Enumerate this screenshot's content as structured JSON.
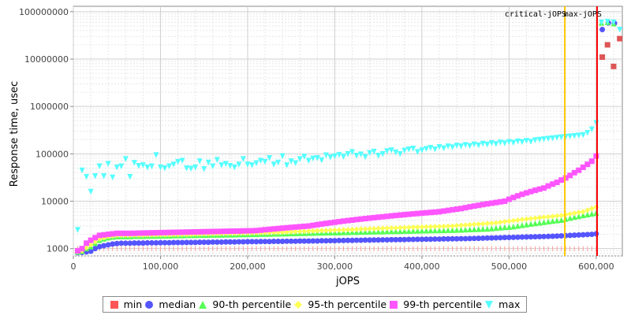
{
  "chart_data": {
    "type": "scatter",
    "title": "",
    "xlabel": "jOPS",
    "ylabel": "Response time, usec",
    "yscale": "log",
    "xlim": [
      0,
      630000
    ],
    "ylim": [
      700,
      130000000
    ],
    "grid": true,
    "legend_position": "bottom",
    "x_ticks": [
      "0",
      "100,000",
      "200,000",
      "300,000",
      "400,000",
      "500,000",
      "600,000"
    ],
    "y_ticks": [
      "1000",
      "10000",
      "100000",
      "1000000",
      "10000000",
      "100000000"
    ],
    "annotations": [
      {
        "label": "critical-jOPS",
        "x": 564000,
        "color": "#ffc800"
      },
      {
        "label": "max-jOPS",
        "x": 601000,
        "color": "#ff0000"
      }
    ],
    "x": [
      5000,
      10000,
      15000,
      20000,
      25000,
      30000,
      35000,
      40000,
      45000,
      50000,
      55000,
      60000,
      65000,
      70000,
      75000,
      80000,
      85000,
      90000,
      95000,
      100000,
      105000,
      110000,
      115000,
      120000,
      125000,
      130000,
      135000,
      140000,
      145000,
      150000,
      155000,
      160000,
      165000,
      170000,
      175000,
      180000,
      185000,
      190000,
      195000,
      200000,
      205000,
      210000,
      215000,
      220000,
      225000,
      230000,
      235000,
      240000,
      245000,
      250000,
      255000,
      260000,
      265000,
      270000,
      275000,
      280000,
      285000,
      290000,
      295000,
      300000,
      305000,
      310000,
      315000,
      320000,
      325000,
      330000,
      335000,
      340000,
      345000,
      350000,
      355000,
      360000,
      365000,
      370000,
      375000,
      380000,
      385000,
      390000,
      395000,
      400000,
      405000,
      410000,
      415000,
      420000,
      425000,
      430000,
      435000,
      440000,
      445000,
      450000,
      455000,
      460000,
      465000,
      470000,
      475000,
      480000,
      485000,
      490000,
      495000,
      500000,
      505000,
      510000,
      515000,
      520000,
      525000,
      530000,
      535000,
      540000,
      545000,
      550000,
      555000,
      560000,
      565000,
      570000,
      575000,
      580000,
      585000,
      590000,
      595000,
      600000
    ],
    "series": [
      {
        "name": "min",
        "color": "#ff5555",
        "marker": "square",
        "values": [
          1000,
          1000,
          1000,
          1000,
          1000,
          1000,
          1000,
          1000,
          1000,
          1000,
          1000,
          1000,
          1000,
          1000,
          1000,
          1000,
          1000,
          1000,
          1000,
          1000,
          1000,
          1000,
          1000,
          1000,
          1000,
          1000,
          1000,
          1000,
          1000,
          1000,
          1000,
          1000,
          1000,
          1000,
          1000,
          1000,
          1000,
          1000,
          1000,
          1000,
          1000,
          1000,
          1000,
          1000,
          1000,
          1000,
          1000,
          1000,
          1000,
          1000,
          1000,
          1000,
          1000,
          1000,
          1000,
          1000,
          1000,
          1000,
          1000,
          1000,
          1000,
          1000,
          1000,
          1000,
          1000,
          1000,
          1000,
          1000,
          1000,
          1000,
          1000,
          1000,
          1000,
          1000,
          1000,
          1000,
          1000,
          1000,
          1000,
          1000,
          1000,
          1000,
          1000,
          1000,
          1000,
          1000,
          1000,
          1000,
          1000,
          1000,
          1000,
          1000,
          1000,
          1000,
          1000,
          1000,
          1000,
          1000,
          1000,
          1000,
          1000,
          1000,
          1000,
          1000,
          1000,
          1000,
          1000,
          1000,
          1000,
          1000,
          1000,
          1000,
          1000,
          1000,
          1000,
          1000,
          1000,
          1000,
          1000,
          1000
        ],
        "extra": [
          [
            607000,
            11000000
          ],
          [
            613000,
            20000000
          ],
          [
            620000,
            7000000
          ],
          [
            627000,
            27000000
          ]
        ]
      },
      {
        "name": "median",
        "color": "#5555ff",
        "marker": "circle",
        "values": [
          820,
          830,
          850,
          880,
          1000,
          1100,
          1150,
          1200,
          1250,
          1280,
          1300,
          1300,
          1300,
          1310,
          1310,
          1310,
          1320,
          1320,
          1320,
          1330,
          1330,
          1330,
          1340,
          1340,
          1340,
          1350,
          1350,
          1350,
          1360,
          1360,
          1360,
          1370,
          1370,
          1370,
          1380,
          1380,
          1380,
          1390,
          1390,
          1400,
          1400,
          1400,
          1410,
          1410,
          1410,
          1420,
          1420,
          1420,
          1430,
          1430,
          1430,
          1440,
          1440,
          1440,
          1450,
          1450,
          1460,
          1460,
          1470,
          1470,
          1480,
          1480,
          1490,
          1490,
          1500,
          1500,
          1510,
          1510,
          1520,
          1520,
          1530,
          1530,
          1540,
          1540,
          1550,
          1550,
          1560,
          1560,
          1570,
          1570,
          1580,
          1580,
          1590,
          1590,
          1600,
          1600,
          1610,
          1610,
          1620,
          1620,
          1630,
          1640,
          1650,
          1660,
          1670,
          1680,
          1690,
          1700,
          1710,
          1720,
          1730,
          1740,
          1750,
          1760,
          1770,
          1780,
          1790,
          1800,
          1810,
          1820,
          1840,
          1860,
          1880,
          1900,
          1920,
          1940,
          1960,
          1980,
          2000,
          2050
        ],
        "extra": [
          [
            607000,
            42000000
          ],
          [
            614000,
            58000000
          ],
          [
            621000,
            57000000
          ]
        ]
      },
      {
        "name": "90-th percentile",
        "color": "#55ff55",
        "marker": "triangle-up",
        "values": [
          850,
          880,
          1000,
          1100,
          1300,
          1500,
          1600,
          1700,
          1750,
          1800,
          1800,
          1800,
          1800,
          1820,
          1820,
          1820,
          1840,
          1840,
          1840,
          1860,
          1860,
          1860,
          1880,
          1880,
          1880,
          1900,
          1900,
          1900,
          1920,
          1920,
          1920,
          1940,
          1940,
          1940,
          1960,
          1960,
          1960,
          1980,
          1980,
          2000,
          2000,
          2000,
          2020,
          2020,
          2020,
          2040,
          2040,
          2060,
          2060,
          2080,
          2080,
          2100,
          2100,
          2120,
          2120,
          2140,
          2140,
          2160,
          2160,
          2180,
          2180,
          2200,
          2200,
          2220,
          2220,
          2240,
          2240,
          2260,
          2260,
          2280,
          2280,
          2300,
          2300,
          2320,
          2320,
          2340,
          2340,
          2360,
          2360,
          2380,
          2380,
          2400,
          2400,
          2420,
          2420,
          2440,
          2440,
          2460,
          2480,
          2500,
          2520,
          2540,
          2560,
          2580,
          2600,
          2650,
          2700,
          2750,
          2800,
          2850,
          2900,
          3000,
          3100,
          3200,
          3300,
          3400,
          3500,
          3600,
          3700,
          3800,
          3900,
          4000,
          4200,
          4400,
          4600,
          4800,
          5000,
          5200,
          5400,
          5600
        ],
        "extra": [
          [
            606000,
            58000000
          ],
          [
            613000,
            60000000
          ],
          [
            620000,
            56000000
          ]
        ]
      },
      {
        "name": "95-th percentile",
        "color": "#ffff55",
        "marker": "diamond",
        "values": [
          860,
          900,
          1050,
          1200,
          1400,
          1600,
          1700,
          1800,
          1850,
          1900,
          1900,
          1900,
          1900,
          1920,
          1920,
          1920,
          1940,
          1940,
          1940,
          1960,
          1960,
          1960,
          1980,
          1980,
          2000,
          2000,
          2000,
          2020,
          2020,
          2040,
          2040,
          2060,
          2060,
          2080,
          2080,
          2100,
          2100,
          2120,
          2120,
          2140,
          2140,
          2160,
          2160,
          2180,
          2180,
          2200,
          2200,
          2220,
          2240,
          2260,
          2280,
          2300,
          2320,
          2340,
          2360,
          2380,
          2400,
          2420,
          2440,
          2460,
          2480,
          2500,
          2520,
          2540,
          2560,
          2580,
          2600,
          2620,
          2640,
          2660,
          2680,
          2700,
          2720,
          2740,
          2760,
          2780,
          2800,
          2820,
          2840,
          2860,
          2880,
          2900,
          2920,
          2940,
          2960,
          2980,
          3000,
          3050,
          3100,
          3150,
          3200,
          3250,
          3300,
          3350,
          3400,
          3450,
          3500,
          3600,
          3700,
          3800,
          3900,
          4000,
          4100,
          4200,
          4300,
          4400,
          4500,
          4600,
          4700,
          4800,
          4900,
          5000,
          5200,
          5400,
          5600,
          5800,
          6000,
          6500,
          7000,
          7500
        ]
      },
      {
        "name": "99-th percentile",
        "color": "#ff55ff",
        "marker": "square",
        "values": [
          900,
          1000,
          1300,
          1500,
          1700,
          1900,
          1950,
          2000,
          2050,
          2100,
          2100,
          2100,
          2100,
          2110,
          2120,
          2130,
          2140,
          2150,
          2160,
          2170,
          2180,
          2190,
          2200,
          2210,
          2220,
          2230,
          2240,
          2250,
          2260,
          2270,
          2280,
          2290,
          2300,
          2310,
          2320,
          2330,
          2340,
          2350,
          2360,
          2370,
          2380,
          2400,
          2450,
          2500,
          2550,
          2600,
          2650,
          2700,
          2750,
          2800,
          2850,
          2900,
          2950,
          3000,
          3100,
          3200,
          3300,
          3400,
          3500,
          3600,
          3700,
          3800,
          3900,
          4000,
          4100,
          4200,
          4300,
          4400,
          4500,
          4600,
          4700,
          4800,
          4900,
          5000,
          5100,
          5200,
          5300,
          5400,
          5500,
          5600,
          5700,
          5800,
          5900,
          6000,
          6200,
          6400,
          6600,
          6800,
          7000,
          7300,
          7600,
          7900,
          8200,
          8500,
          8800,
          9100,
          9400,
          9700,
          10000,
          11000,
          12000,
          13000,
          14000,
          15000,
          16000,
          17000,
          18000,
          19000,
          21000,
          23000,
          25000,
          28000,
          31000,
          35000,
          40000,
          45000,
          52000,
          60000,
          70000,
          90000
        ]
      },
      {
        "name": "max",
        "color": "#55ffff",
        "marker": "triangle-down",
        "values": [
          2500,
          45000,
          33000,
          16000,
          34000,
          55000,
          34000,
          62000,
          32000,
          52000,
          55000,
          78000,
          33000,
          65000,
          56000,
          58000,
          52000,
          55000,
          95000,
          52000,
          50000,
          55000,
          60000,
          68000,
          72000,
          50000,
          49000,
          52000,
          70000,
          48000,
          66000,
          55000,
          75000,
          58000,
          62000,
          56000,
          52000,
          60000,
          78000,
          60000,
          58000,
          64000,
          72000,
          68000,
          82000,
          60000,
          66000,
          90000,
          58000,
          70000,
          64000,
          78000,
          88000,
          72000,
          80000,
          82000,
          74000,
          94000,
          85000,
          90000,
          96000,
          88000,
          100000,
          110000,
          92000,
          98000,
          86000,
          105000,
          112000,
          92000,
          100000,
          115000,
          120000,
          108000,
          100000,
          118000,
          125000,
          130000,
          110000,
          120000,
          128000,
          135000,
          125000,
          140000,
          132000,
          145000,
          138000,
          150000,
          145000,
          155000,
          148000,
          160000,
          152000,
          165000,
          158000,
          170000,
          162000,
          175000,
          168000,
          180000,
          172000,
          185000,
          178000,
          190000,
          182000,
          195000,
          200000,
          205000,
          210000,
          215000,
          220000,
          225000,
          230000,
          235000,
          240000,
          245000,
          250000,
          280000,
          330000,
          450000
        ],
        "extra": [
          [
            606000,
            60000000
          ],
          [
            613000,
            62000000
          ],
          [
            620000,
            60000000
          ],
          [
            627000,
            42000000
          ]
        ]
      }
    ]
  }
}
